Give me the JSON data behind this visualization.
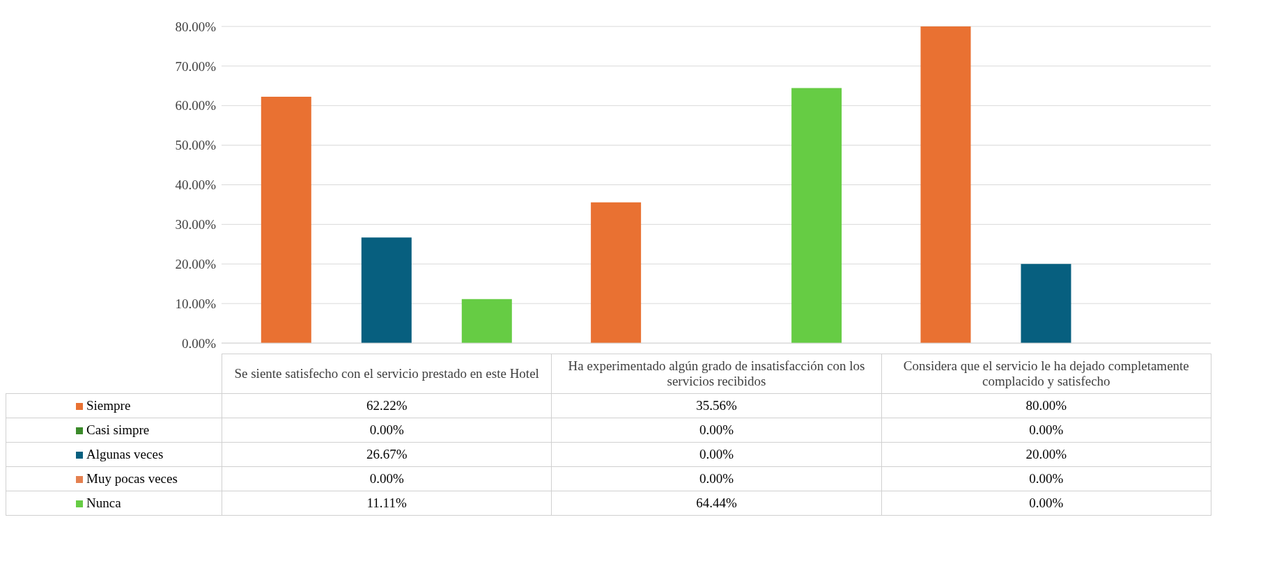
{
  "chart_data": {
    "type": "bar",
    "categories": [
      "Se siente satisfecho con el servicio prestado en este Hotel",
      "Ha experimentado algún grado de insatisfacción con los servicios recibidos",
      "Considera que el servicio le ha dejado completamente complacido y satisfecho"
    ],
    "series": [
      {
        "name": "Siempre",
        "color": "#e97132",
        "values": [
          62.22,
          35.56,
          80.0
        ],
        "value_labels": [
          "62.22%",
          "35.56%",
          "80.00%"
        ]
      },
      {
        "name": "Casi simpre",
        "color": "#3b8a2a",
        "values": [
          0,
          0,
          0
        ],
        "value_labels": [
          "0.00%",
          "0.00%",
          "0.00%"
        ]
      },
      {
        "name": "Algunas veces",
        "color": "#075f7f",
        "values": [
          26.67,
          0,
          20.0
        ],
        "value_labels": [
          "26.67%",
          "0.00%",
          "20.00%"
        ]
      },
      {
        "name": "Muy pocas veces",
        "color": "#e4804f",
        "values": [
          0,
          0,
          0
        ],
        "value_labels": [
          "0.00%",
          "0.00%",
          "0.00%"
        ]
      },
      {
        "name": "Nunca",
        "color": "#66cc44",
        "values": [
          11.11,
          64.44,
          0
        ],
        "value_labels": [
          "11.11%",
          "64.44%",
          "0.00%"
        ]
      }
    ],
    "ylim": [
      0,
      80
    ],
    "yticks": [
      {
        "value": 0,
        "label": "0.00%"
      },
      {
        "value": 10,
        "label": "10.00%"
      },
      {
        "value": 20,
        "label": "20.00%"
      },
      {
        "value": 30,
        "label": "30.00%"
      },
      {
        "value": 40,
        "label": "40.00%"
      },
      {
        "value": 50,
        "label": "50.00%"
      },
      {
        "value": 60,
        "label": "60.00%"
      },
      {
        "value": 70,
        "label": "70.00%"
      },
      {
        "value": 80,
        "label": "80.00%"
      }
    ],
    "grid": "y",
    "legend": "bottom"
  }
}
